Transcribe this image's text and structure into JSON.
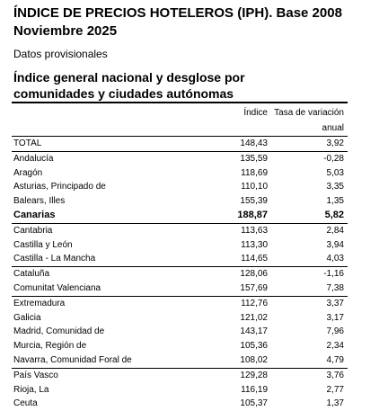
{
  "header": {
    "title_line1": "ÍNDICE DE PRECIOS HOTELEROS (IPH). Base 2008",
    "title_line2": "Noviembre 2025",
    "note": "Datos provisionales"
  },
  "section": {
    "title_line1": "Índice general nacional y desglose por",
    "title_line2": "comunidades y ciudades autónomas"
  },
  "table": {
    "columns": {
      "index": "Índice",
      "rate_line1": "Tasa de variación",
      "rate_line2": "anual"
    },
    "rows": [
      {
        "name": "TOTAL",
        "index": "148,43",
        "rate": "3,92"
      },
      {
        "name": "Andalucía",
        "index": "135,59",
        "rate": "-0,28"
      },
      {
        "name": "Aragón",
        "index": "118,69",
        "rate": "5,03"
      },
      {
        "name": "Asturias, Principado de",
        "index": "110,10",
        "rate": "3,35"
      },
      {
        "name": "Balears, Illes",
        "index": "155,39",
        "rate": "1,35"
      },
      {
        "name": "Canarias",
        "index": "188,87",
        "rate": "5,82"
      },
      {
        "name": "Cantabria",
        "index": "113,63",
        "rate": "2,84"
      },
      {
        "name": "Castilla y León",
        "index": "113,30",
        "rate": "3,94"
      },
      {
        "name": "Castilla - La Mancha",
        "index": "114,65",
        "rate": "4,03"
      },
      {
        "name": "Cataluña",
        "index": "128,06",
        "rate": "-1,16"
      },
      {
        "name": "Comunitat Valenciana",
        "index": "157,69",
        "rate": "7,38"
      },
      {
        "name": "Extremadura",
        "index": "112,76",
        "rate": "3,37"
      },
      {
        "name": "Galicia",
        "index": "121,02",
        "rate": "3,17"
      },
      {
        "name": "Madrid, Comunidad de",
        "index": "143,17",
        "rate": "7,96"
      },
      {
        "name": "Murcia, Región de",
        "index": "105,36",
        "rate": "2,34"
      },
      {
        "name": "Navarra, Comunidad Foral de",
        "index": "108,02",
        "rate": "4,79"
      },
      {
        "name": "País Vasco",
        "index": "129,28",
        "rate": "3,76"
      },
      {
        "name": "Rioja, La",
        "index": "116,19",
        "rate": "2,77"
      },
      {
        "name": "Ceuta",
        "index": "105,37",
        "rate": "1,37"
      }
    ]
  }
}
